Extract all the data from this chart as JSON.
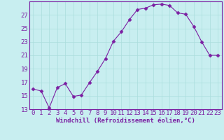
{
  "x": [
    0,
    1,
    2,
    3,
    4,
    5,
    6,
    7,
    8,
    9,
    10,
    11,
    12,
    13,
    14,
    15,
    16,
    17,
    18,
    19,
    20,
    21,
    22,
    23
  ],
  "y": [
    16.0,
    15.7,
    13.2,
    16.2,
    16.8,
    14.9,
    15.1,
    16.9,
    18.6,
    20.5,
    23.1,
    24.5,
    26.3,
    27.8,
    28.0,
    28.5,
    28.6,
    28.4,
    27.3,
    27.1,
    25.3,
    23.0,
    21.0,
    21.0
  ],
  "line_color": "#7B1FA2",
  "marker": "D",
  "marker_size": 2.5,
  "background_color": "#c8eef0",
  "grid_color": "#aadddd",
  "xlabel": "Windchill (Refroidissement éolien,°C)",
  "ylim": [
    13,
    29
  ],
  "xlim_min": -0.5,
  "xlim_max": 23.5,
  "yticks": [
    13,
    15,
    17,
    19,
    21,
    23,
    25,
    27
  ],
  "xticks": [
    0,
    1,
    2,
    3,
    4,
    5,
    6,
    7,
    8,
    9,
    10,
    11,
    12,
    13,
    14,
    15,
    16,
    17,
    18,
    19,
    20,
    21,
    22,
    23
  ],
  "tick_label_color": "#7B1FA2",
  "xlabel_color": "#7B1FA2",
  "font_size": 6.5
}
